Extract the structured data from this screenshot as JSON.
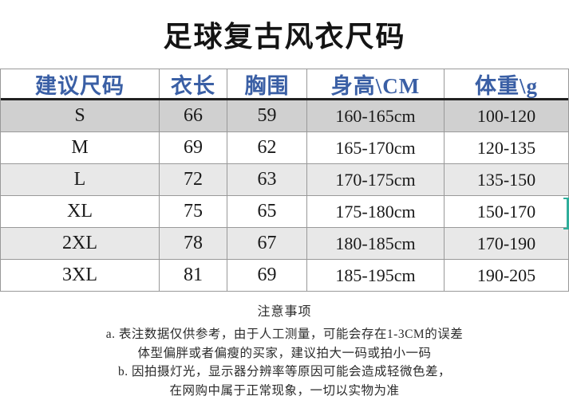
{
  "page": {
    "title": "足球复古风衣尺码"
  },
  "colors": {
    "header_text": "#3a5fa5",
    "row_dark": "#d0d0d0",
    "row_light": "#e8e8e8",
    "border": "#999999",
    "header_underline": "#202020",
    "selection_accent": "#2fae9b"
  },
  "table": {
    "columns": [
      "建议尺码",
      "衣长",
      "胸围",
      "身高\\CM",
      "体重\\g"
    ],
    "rows": [
      {
        "size": "S",
        "length": "66",
        "chest": "59",
        "height": "160-165cm",
        "weight": "100-120"
      },
      {
        "size": "M",
        "length": "69",
        "chest": "62",
        "height": "165-170cm",
        "weight": "120-135"
      },
      {
        "size": "L",
        "length": "72",
        "chest": "63",
        "height": "170-175cm",
        "weight": "135-150"
      },
      {
        "size": "XL",
        "length": "75",
        "chest": "65",
        "height": "175-180cm",
        "weight": "150-170"
      },
      {
        "size": "2XL",
        "length": "78",
        "chest": "67",
        "height": "180-185cm",
        "weight": "170-190"
      },
      {
        "size": "3XL",
        "length": "81",
        "chest": "69",
        "height": "185-195cm",
        "weight": "190-205"
      }
    ]
  },
  "notes": {
    "heading": "注意事项",
    "lines": [
      "a. 表注数据仅供参考，由于人工测量，可能会存在1-3CM的误差",
      "体型偏胖或者偏瘦的买家，建议拍大一码或拍小一码",
      "b. 因拍摄灯光，显示器分辨率等原因可能会造成轻微色差，",
      "在网购中属于正常现象，一切以实物为准"
    ]
  }
}
